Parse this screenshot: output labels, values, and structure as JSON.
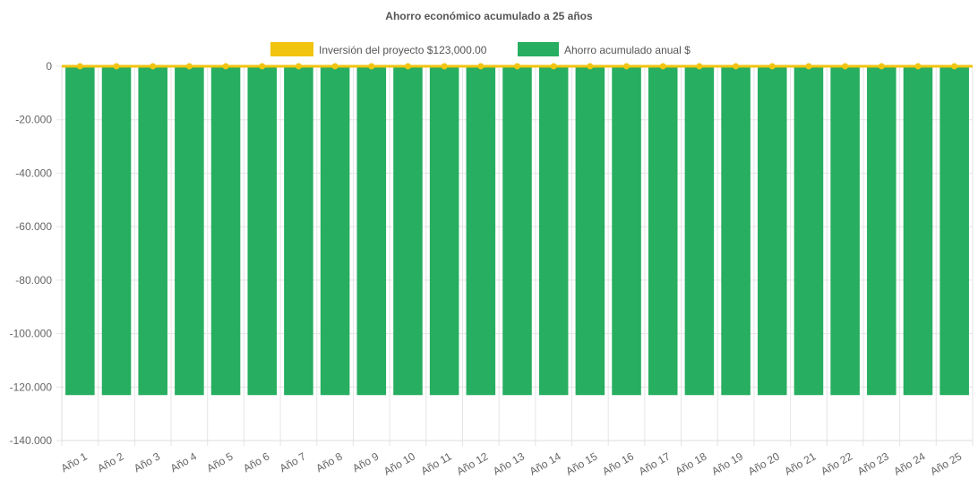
{
  "chart_data": {
    "type": "bar",
    "title": "Ahorro económico acumulado a 25 años",
    "categories": [
      "Año 1",
      "Año 2",
      "Año 3",
      "Año 4",
      "Año 5",
      "Año 6",
      "Año 7",
      "Año 8",
      "Año 9",
      "Año 10",
      "Año 11",
      "Año 12",
      "Año 13",
      "Año 14",
      "Año 15",
      "Año 16",
      "Año 17",
      "Año 18",
      "Año 19",
      "Año 20",
      "Año 21",
      "Año 22",
      "Año 23",
      "Año 24",
      "Año 25"
    ],
    "series": [
      {
        "name": "Inversión del proyecto $123,000.00",
        "type": "line",
        "color": "#f1c40f",
        "values": [
          0,
          0,
          0,
          0,
          0,
          0,
          0,
          0,
          0,
          0,
          0,
          0,
          0,
          0,
          0,
          0,
          0,
          0,
          0,
          0,
          0,
          0,
          0,
          0,
          0
        ]
      },
      {
        "name": "Ahorro acumulado anual $",
        "type": "bar",
        "color": "#27ae60",
        "values": [
          -123000,
          -123000,
          -123000,
          -123000,
          -123000,
          -123000,
          -123000,
          -123000,
          -123000,
          -123000,
          -123000,
          -123000,
          -123000,
          -123000,
          -123000,
          -123000,
          -123000,
          -123000,
          -123000,
          -123000,
          -123000,
          -123000,
          -123000,
          -123000,
          -123000
        ]
      }
    ],
    "yticks": [
      "0",
      "-20.000",
      "-40.000",
      "-60.000",
      "-80.000",
      "-100.000",
      "-120.000",
      "-140.000"
    ],
    "ylim": [
      -140000,
      0
    ],
    "grid": true,
    "legend_position": "top"
  }
}
